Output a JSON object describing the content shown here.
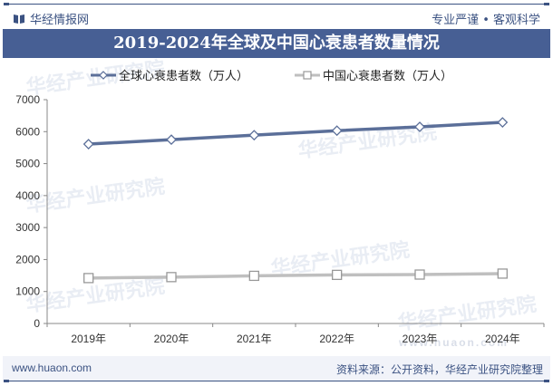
{
  "header": {
    "brand": "华经情报网",
    "slogan": "专业严谨 • 客观科学",
    "title": "2019-2024年全球及中国心衰患者数量情况"
  },
  "footer": {
    "url": "www.huaon.com",
    "source": "资料来源：公开资料，华经产业研究院整理"
  },
  "watermark": {
    "text": "华经产业研究院",
    "url": "www.huaon.com"
  },
  "colors": {
    "accent": "#475f94",
    "series_global": "#5b6f99",
    "series_china": "#bfbfbf"
  },
  "chart_data": {
    "type": "line",
    "title": "2019-2024年全球及中国心衰患者数量情况",
    "xlabel": "",
    "ylabel": "",
    "categories": [
      "2019年",
      "2020年",
      "2021年",
      "2022年",
      "2023年",
      "2024年"
    ],
    "series": [
      {
        "name": "全球心衰患者数（万人）",
        "values": [
          5610,
          5750,
          5890,
          6030,
          6150,
          6290
        ],
        "marker": "diamond",
        "color": "#5b6f99"
      },
      {
        "name": "中国心衰患者数（万人）",
        "values": [
          1420,
          1450,
          1490,
          1520,
          1530,
          1560
        ],
        "marker": "square",
        "color": "#bfbfbf"
      }
    ],
    "ylim": [
      0,
      7000
    ],
    "yticks": [
      0,
      1000,
      2000,
      3000,
      4000,
      5000,
      6000,
      7000
    ],
    "grid": false,
    "legend_position": "top"
  }
}
